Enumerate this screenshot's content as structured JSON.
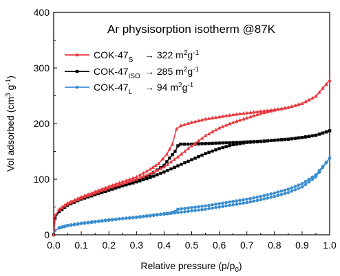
{
  "chart_data": {
    "type": "line",
    "title": "Ar physisorption isotherm @87K",
    "xlabel": {
      "main": "Relative pressure (p/p",
      "sub": "0",
      "end": ")"
    },
    "ylabel": {
      "main": "Vol adsorbed (cm",
      "sup1": "3",
      "mid": " g",
      "sup2": "-1",
      "end": ")"
    },
    "xlim": [
      0,
      1.0
    ],
    "ylim": [
      0,
      400
    ],
    "xticks": [
      "0.0",
      "0.1",
      "0.2",
      "0.3",
      "0.4",
      "0.5",
      "0.6",
      "0.7",
      "0.8",
      "0.9",
      "1.0"
    ],
    "yticks": [
      "0",
      "100",
      "200",
      "300",
      "400"
    ],
    "legend_position": "top-left",
    "series": [
      {
        "name": "COK-47",
        "name_sub": "S",
        "arrow": "→",
        "area_value": "322",
        "area_unit": "m",
        "area_sup1": "2",
        "area_unit2": "g",
        "area_sup2": "-1",
        "color": "#e8383d",
        "marker": "triangle",
        "adsorption": [
          [
            0.0,
            0
          ],
          [
            0.005,
            35
          ],
          [
            0.02,
            45
          ],
          [
            0.05,
            55
          ],
          [
            0.1,
            66
          ],
          [
            0.15,
            75
          ],
          [
            0.2,
            84
          ],
          [
            0.25,
            92
          ],
          [
            0.3,
            100
          ],
          [
            0.35,
            110
          ],
          [
            0.4,
            122
          ],
          [
            0.45,
            140
          ],
          [
            0.5,
            160
          ],
          [
            0.55,
            178
          ],
          [
            0.6,
            192
          ],
          [
            0.65,
            202
          ],
          [
            0.7,
            210
          ],
          [
            0.75,
            218
          ],
          [
            0.8,
            224
          ],
          [
            0.85,
            229
          ],
          [
            0.9,
            236
          ],
          [
            0.95,
            249
          ],
          [
            1.0,
            278
          ]
        ],
        "desorption": [
          [
            1.0,
            278
          ],
          [
            0.95,
            249
          ],
          [
            0.9,
            236
          ],
          [
            0.85,
            229
          ],
          [
            0.8,
            225
          ],
          [
            0.75,
            222
          ],
          [
            0.7,
            219
          ],
          [
            0.65,
            216
          ],
          [
            0.6,
            212
          ],
          [
            0.55,
            208
          ],
          [
            0.5,
            202
          ],
          [
            0.46,
            196
          ],
          [
            0.445,
            190
          ],
          [
            0.43,
            163
          ],
          [
            0.41,
            145
          ],
          [
            0.38,
            128
          ],
          [
            0.35,
            118
          ],
          [
            0.3,
            104
          ],
          [
            0.2,
            87
          ],
          [
            0.1,
            68
          ],
          [
            0.05,
            57
          ],
          [
            0.02,
            46
          ]
        ]
      },
      {
        "name": "COK-47",
        "name_sub": "ISO",
        "arrow": "→",
        "area_value": "285",
        "area_unit": "m",
        "area_sup1": "2",
        "area_unit2": "g",
        "area_sup2": "-1",
        "color": "#000000",
        "marker": "square",
        "adsorption": [
          [
            0.0,
            0
          ],
          [
            0.005,
            30
          ],
          [
            0.02,
            42
          ],
          [
            0.05,
            53
          ],
          [
            0.1,
            64
          ],
          [
            0.15,
            72
          ],
          [
            0.2,
            80
          ],
          [
            0.25,
            88
          ],
          [
            0.3,
            95
          ],
          [
            0.35,
            103
          ],
          [
            0.4,
            113
          ],
          [
            0.45,
            124
          ],
          [
            0.5,
            135
          ],
          [
            0.55,
            146
          ],
          [
            0.6,
            155
          ],
          [
            0.65,
            162
          ],
          [
            0.7,
            166
          ],
          [
            0.75,
            168
          ],
          [
            0.8,
            170
          ],
          [
            0.85,
            172
          ],
          [
            0.9,
            175
          ],
          [
            0.95,
            179
          ],
          [
            1.0,
            187
          ]
        ],
        "desorption": [
          [
            1.0,
            187
          ],
          [
            0.95,
            179
          ],
          [
            0.9,
            175
          ],
          [
            0.85,
            172
          ],
          [
            0.8,
            170
          ],
          [
            0.75,
            168
          ],
          [
            0.7,
            167
          ],
          [
            0.65,
            166
          ],
          [
            0.6,
            165
          ],
          [
            0.55,
            164
          ],
          [
            0.5,
            163
          ],
          [
            0.46,
            163
          ],
          [
            0.45,
            160
          ],
          [
            0.44,
            150
          ],
          [
            0.42,
            138
          ],
          [
            0.4,
            125
          ],
          [
            0.35,
            108
          ],
          [
            0.3,
            97
          ],
          [
            0.2,
            82
          ],
          [
            0.1,
            65
          ],
          [
            0.05,
            54
          ],
          [
            0.02,
            43
          ]
        ]
      },
      {
        "name": "COK-47",
        "name_sub": "L",
        "arrow": "→",
        "area_value": "94",
        "area_unit": "m",
        "area_sup1": "2",
        "area_unit2": "g",
        "area_sup2": "-1",
        "color": "#3a8ed0",
        "marker": "circle",
        "adsorption": [
          [
            0.0,
            0
          ],
          [
            0.005,
            8
          ],
          [
            0.02,
            12
          ],
          [
            0.05,
            16
          ],
          [
            0.1,
            20
          ],
          [
            0.15,
            23
          ],
          [
            0.2,
            26
          ],
          [
            0.25,
            29
          ],
          [
            0.3,
            31
          ],
          [
            0.35,
            34
          ],
          [
            0.4,
            37
          ],
          [
            0.45,
            40
          ],
          [
            0.5,
            43
          ],
          [
            0.55,
            46
          ],
          [
            0.6,
            50
          ],
          [
            0.65,
            54
          ],
          [
            0.7,
            58
          ],
          [
            0.75,
            63
          ],
          [
            0.8,
            69
          ],
          [
            0.85,
            76
          ],
          [
            0.9,
            86
          ],
          [
            0.95,
            104
          ],
          [
            1.0,
            138
          ]
        ],
        "desorption": [
          [
            1.0,
            138
          ],
          [
            0.95,
            108
          ],
          [
            0.9,
            92
          ],
          [
            0.85,
            82
          ],
          [
            0.8,
            75
          ],
          [
            0.75,
            69
          ],
          [
            0.7,
            64
          ],
          [
            0.65,
            60
          ],
          [
            0.6,
            56
          ],
          [
            0.55,
            52
          ],
          [
            0.5,
            49
          ],
          [
            0.45,
            46
          ],
          [
            0.44,
            42
          ],
          [
            0.42,
            39
          ],
          [
            0.4,
            38
          ],
          [
            0.3,
            32
          ],
          [
            0.2,
            27
          ],
          [
            0.1,
            21
          ],
          [
            0.05,
            17
          ],
          [
            0.02,
            13
          ]
        ]
      }
    ]
  }
}
